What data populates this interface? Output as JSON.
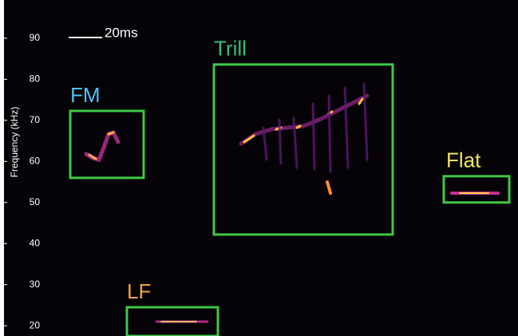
{
  "chart_data": {
    "type": "spectrogram",
    "ylabel": "Frequency (kHz)",
    "ylim": [
      17.5,
      99.3
    ],
    "yticks": [
      20,
      30,
      40,
      50,
      60,
      70,
      80,
      90
    ],
    "scale_bar": "20ms",
    "box_color": "#3ec846",
    "annotations": [
      {
        "label": "FM",
        "color": "#4fc0ef",
        "freq_range": [
          56,
          72.3
        ]
      },
      {
        "label": "Trill",
        "color": "#2fbf7a",
        "freq_range": [
          42.2,
          83.6
        ]
      },
      {
        "label": "Flat",
        "color": "#f0e45a",
        "freq_range": [
          50,
          56.4
        ]
      },
      {
        "label": "LF",
        "color": "#f0a332",
        "freq_range": [
          17.5,
          24.5
        ]
      }
    ]
  }
}
